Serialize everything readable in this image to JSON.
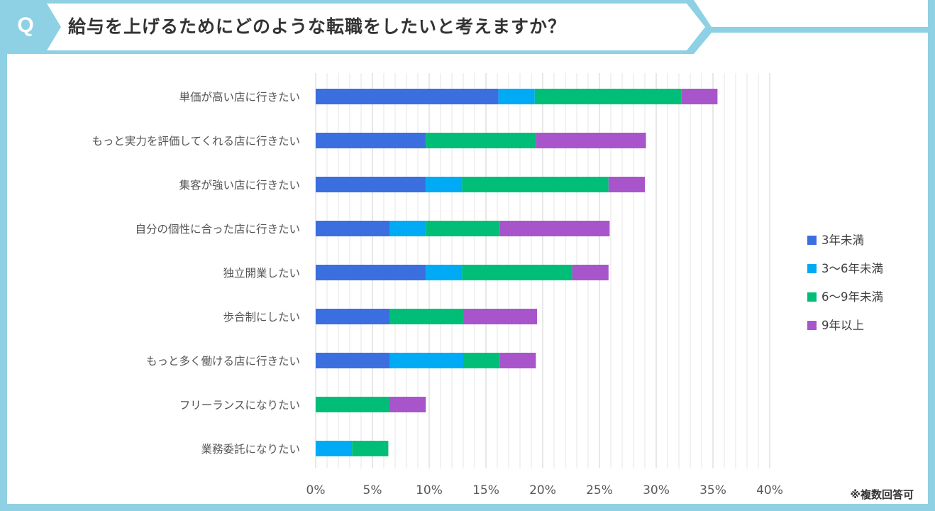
{
  "header": {
    "badge": "Q",
    "question": "給与を上げるためにどのような転職をしたいと考えますか？"
  },
  "colors": {
    "frame": "#8ed0e4",
    "series": [
      "#3b6fe0",
      "#00aaf5",
      "#00be78",
      "#a855cc"
    ]
  },
  "note": "※複数回答可",
  "chart_data": {
    "type": "bar",
    "orientation": "horizontal",
    "stacked": true,
    "title": "給与を上げるためにどのような転職をしたいと考えますか？",
    "xlabel": "",
    "ylabel": "",
    "xlim": [
      0,
      40
    ],
    "ticks": [
      0,
      5,
      10,
      15,
      20,
      25,
      30,
      35,
      40
    ],
    "tick_suffix": "%",
    "grid": true,
    "legend_position": "right",
    "categories": [
      "単価が高い店に行きたい",
      "もっと実力を評価してくれる店に行きたい",
      "集客が強い店に行きたい",
      "自分の個性に合った店に行きたい",
      "独立開業したい",
      "歩合制にしたい",
      "もっと多く働ける店に行きたい",
      "フリーランスになりたい",
      "業務委託になりたい"
    ],
    "series": [
      {
        "name": "3年未満",
        "values": [
          16.1,
          9.7,
          9.7,
          6.5,
          9.7,
          6.5,
          6.5,
          0.0,
          0.0
        ]
      },
      {
        "name": "3〜6年未満",
        "values": [
          3.2,
          0.0,
          3.2,
          3.2,
          3.2,
          0.0,
          6.5,
          0.0,
          3.2
        ]
      },
      {
        "name": "6〜9年未満",
        "values": [
          12.9,
          9.7,
          12.9,
          6.5,
          9.7,
          6.5,
          3.2,
          6.5,
          3.2
        ]
      },
      {
        "name": "9年以上",
        "values": [
          3.2,
          9.7,
          3.2,
          9.7,
          3.2,
          6.5,
          3.2,
          3.2,
          0.0
        ]
      }
    ]
  }
}
